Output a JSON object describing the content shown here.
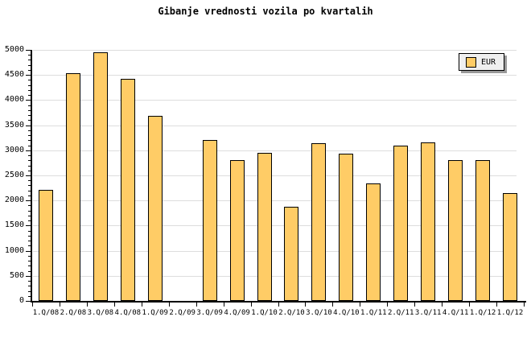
{
  "title": "Gibanje vrednosti vozila po kvartalih",
  "legend": {
    "label": "EUR",
    "swatch_color": "#FFCC66",
    "position": "top-right"
  },
  "colors": {
    "background": "#FFFFFF",
    "bar_fill": "#FFCC66",
    "bar_border": "#000000",
    "gridline": "#DDDDDD",
    "axis": "#000000",
    "legend_bg": "#EFEFEF",
    "legend_shadow": "#999999",
    "text": "#000000"
  },
  "chart_data": {
    "type": "bar",
    "title": "Gibanje vrednosti vozila po kvartalih",
    "xlabel": "",
    "ylabel": "",
    "categories": [
      "1.Q/08",
      "2.Q/08",
      "3.Q/08",
      "4.Q/08",
      "1.Q/09",
      "2.Q/09",
      "3.Q/09",
      "4.Q/09",
      "1.Q/10",
      "2.Q/10",
      "3.Q/10",
      "4.Q/10",
      "1.Q/11",
      "2.Q/11",
      "3.Q/11",
      "4.Q/11",
      "1.Q/12",
      "1.Q/12"
    ],
    "series": [
      {
        "name": "EUR",
        "values": [
          2210,
          4540,
          4950,
          4420,
          3680,
          null,
          3210,
          2810,
          2950,
          1880,
          3140,
          2940,
          2340,
          3100,
          3150,
          2810,
          2810,
          2150
        ]
      }
    ],
    "ylim": [
      0,
      5000
    ],
    "ytick_major_step": 500,
    "ytick_minor_step": 100,
    "ytick_labels": [
      "0",
      "500",
      "1000",
      "1500",
      "2000",
      "2500",
      "3000",
      "3500",
      "4000",
      "4500",
      "5000"
    ],
    "grid": true,
    "legend_position": "top-right",
    "note_empty_category": "2.Q/09"
  }
}
